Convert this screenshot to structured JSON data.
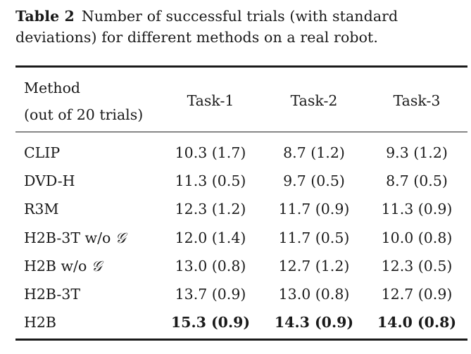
{
  "caption": {
    "label": "Table 2",
    "line1_text": "Number of successful trials (with standard",
    "line2_text": "deviations) for different methods on a real robot."
  },
  "table": {
    "header": {
      "method_line1": "Method",
      "method_line2": "(out of 20 trials)",
      "columns": [
        "Task-1",
        "Task-2",
        "Task-3"
      ]
    },
    "rows": [
      {
        "method": "CLIP",
        "values": [
          "10.3 (1.7)",
          "8.7 (1.2)",
          "9.3 (1.2)"
        ]
      },
      {
        "method": "DVD-H",
        "values": [
          "11.3 (0.5)",
          "9.7 (0.5)",
          "8.7 (0.5)"
        ]
      },
      {
        "method": "R3M",
        "values": [
          "12.3 (1.2)",
          "11.7 (0.9)",
          "11.3 (0.9)"
        ]
      },
      {
        "method": "H2B-3T w/o",
        "symbol": "𝒢",
        "values": [
          "12.0 (1.4)",
          "11.7 (0.5)",
          "10.0 (0.8)"
        ]
      },
      {
        "method": "H2B w/o",
        "symbol": "𝒢",
        "values": [
          "13.0 (0.8)",
          "12.7 (1.2)",
          "12.3 (0.5)"
        ]
      },
      {
        "method": "H2B-3T",
        "values": [
          "13.7 (0.9)",
          "13.0 (0.8)",
          "12.7 (0.9)"
        ]
      },
      {
        "method": "H2B",
        "values": [
          "15.3 (0.9)",
          "14.3 (0.9)",
          "14.0 (0.8)"
        ]
      }
    ]
  }
}
